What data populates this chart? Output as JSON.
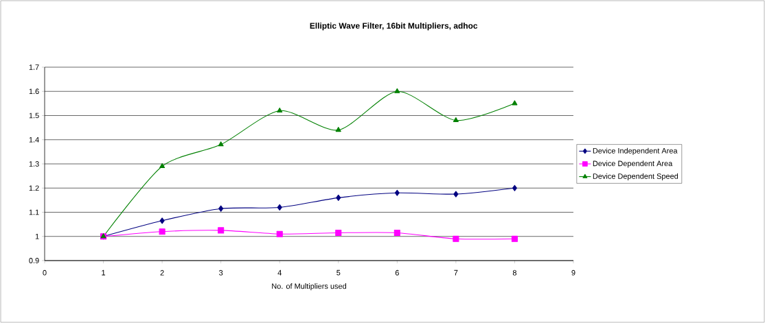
{
  "chart_data": {
    "type": "line",
    "title": "Elliptic Wave Filter, 16bit Multipliers, adhoc",
    "xlabel": "No. of Multipliers used",
    "x": [
      1,
      2,
      3,
      4,
      5,
      6,
      7,
      8
    ],
    "series": [
      {
        "name": "Device Independent Area",
        "color": "#000080",
        "marker": "diamond",
        "values": [
          1.0,
          1.065,
          1.115,
          1.12,
          1.16,
          1.18,
          1.175,
          1.2
        ]
      },
      {
        "name": "Device Dependent Area",
        "color": "#ff00ff",
        "marker": "square",
        "values": [
          1.0,
          1.02,
          1.025,
          1.01,
          1.015,
          1.015,
          0.99,
          0.99
        ]
      },
      {
        "name": "Device Dependent Speed",
        "color": "#008000",
        "marker": "triangle",
        "values": [
          1.0,
          1.29,
          1.38,
          1.52,
          1.44,
          1.6,
          1.48,
          1.55
        ]
      }
    ],
    "xlim": [
      0,
      9
    ],
    "xticks": [
      0,
      1,
      2,
      3,
      4,
      5,
      6,
      7,
      8,
      9
    ],
    "ylim": [
      0.9,
      1.7
    ],
    "yticks": [
      0.9,
      1,
      1.1,
      1.2,
      1.3,
      1.4,
      1.5,
      1.6,
      1.7
    ],
    "grid": "y",
    "legend": "right"
  }
}
